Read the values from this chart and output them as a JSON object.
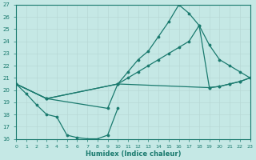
{
  "xlabel": "Humidex (Indice chaleur)",
  "bg_color": "#c5e8e5",
  "line_color": "#1a7a6e",
  "grid_color": "#b8d8d5",
  "xlim": [
    0,
    23
  ],
  "ylim": [
    16,
    27
  ],
  "yticks": [
    16,
    17,
    18,
    19,
    20,
    21,
    22,
    23,
    24,
    25,
    26,
    27
  ],
  "xticks": [
    0,
    1,
    2,
    3,
    4,
    5,
    6,
    7,
    8,
    9,
    10,
    11,
    12,
    13,
    14,
    15,
    16,
    17,
    18,
    19,
    20,
    21,
    22,
    23
  ],
  "curve1_x": [
    0,
    1,
    2,
    3,
    4,
    5,
    6,
    7,
    8,
    9,
    10
  ],
  "curve1_y": [
    20.5,
    19.7,
    18.8,
    18.0,
    17.8,
    16.3,
    16.1,
    16.0,
    16.0,
    16.3,
    18.5
  ],
  "curve2_x": [
    0,
    3,
    9,
    10,
    11,
    12,
    13,
    14,
    15,
    16,
    17,
    18,
    19,
    20,
    21,
    22,
    23
  ],
  "curve2_y": [
    20.5,
    19.3,
    18.5,
    20.5,
    21.5,
    22.5,
    23.2,
    24.4,
    25.6,
    27.0,
    26.3,
    25.3,
    23.7,
    22.5,
    22.0,
    21.5,
    21.0
  ],
  "curve3_x": [
    0,
    3,
    10,
    11,
    12,
    13,
    14,
    15,
    16,
    17,
    18,
    19,
    20,
    21,
    22,
    23
  ],
  "curve3_y": [
    20.5,
    19.3,
    20.5,
    21.0,
    21.5,
    22.0,
    22.5,
    23.0,
    23.5,
    24.0,
    25.3,
    20.2,
    20.3,
    20.5,
    20.7,
    21.0
  ],
  "curve4_x": [
    0,
    3,
    10,
    19,
    20,
    21,
    22,
    23
  ],
  "curve4_y": [
    20.5,
    19.3,
    20.5,
    20.2,
    20.3,
    20.5,
    20.7,
    21.0
  ]
}
